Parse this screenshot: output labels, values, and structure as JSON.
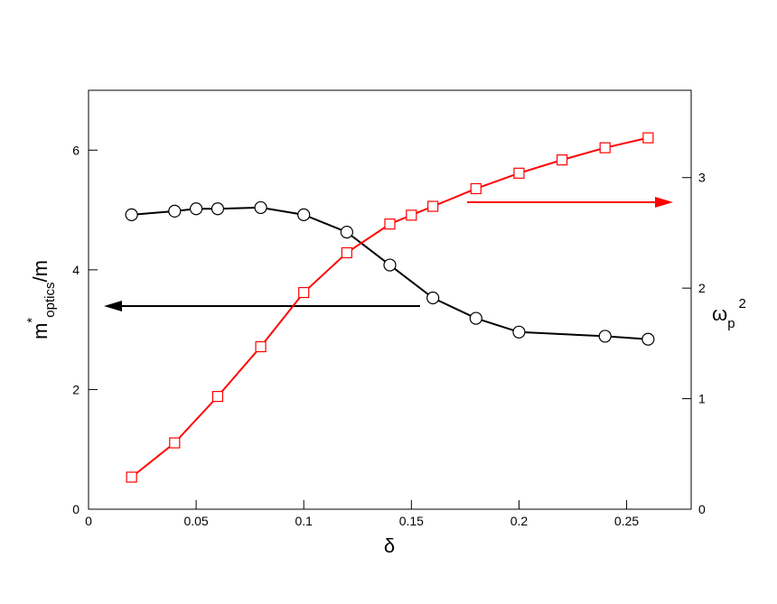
{
  "chart_data": {
    "type": "line",
    "xlabel": "δ",
    "ylabel": {
      "base": "m",
      "sup": "*",
      "sub": "optics",
      "rest": "/m"
    },
    "y2label": {
      "base": "ω",
      "sub": "p",
      "sup": "2"
    },
    "xlim": [
      0,
      0.28
    ],
    "xticks": [
      0,
      0.05,
      0.1,
      0.15,
      0.2,
      0.25
    ],
    "ylim": [
      0,
      7
    ],
    "yticks": [
      0,
      2,
      4,
      6
    ],
    "y2lim": [
      0,
      3.79
    ],
    "y2ticks": [
      0,
      1,
      2,
      3
    ],
    "series": [
      {
        "color": "#000000",
        "marker": "circle",
        "axis": "y",
        "x": [
          0.02,
          0.04,
          0.05,
          0.06,
          0.08,
          0.1,
          0.12,
          0.14,
          0.16,
          0.18,
          0.2,
          0.24,
          0.26
        ],
        "values": [
          4.92,
          4.98,
          5.02,
          5.02,
          5.04,
          4.92,
          4.63,
          4.08,
          3.53,
          3.19,
          2.96,
          2.89,
          2.84
        ]
      },
      {
        "color": "#ff0000",
        "marker": "square",
        "axis": "y2",
        "x": [
          0.02,
          0.04,
          0.06,
          0.08,
          0.1,
          0.12,
          0.14,
          0.15,
          0.16,
          0.18,
          0.2,
          0.22,
          0.24,
          0.26
        ],
        "values": [
          0.29,
          0.6,
          1.02,
          1.47,
          1.96,
          2.32,
          2.58,
          2.66,
          2.74,
          2.9,
          3.04,
          3.16,
          3.27,
          3.36
        ]
      }
    ]
  }
}
